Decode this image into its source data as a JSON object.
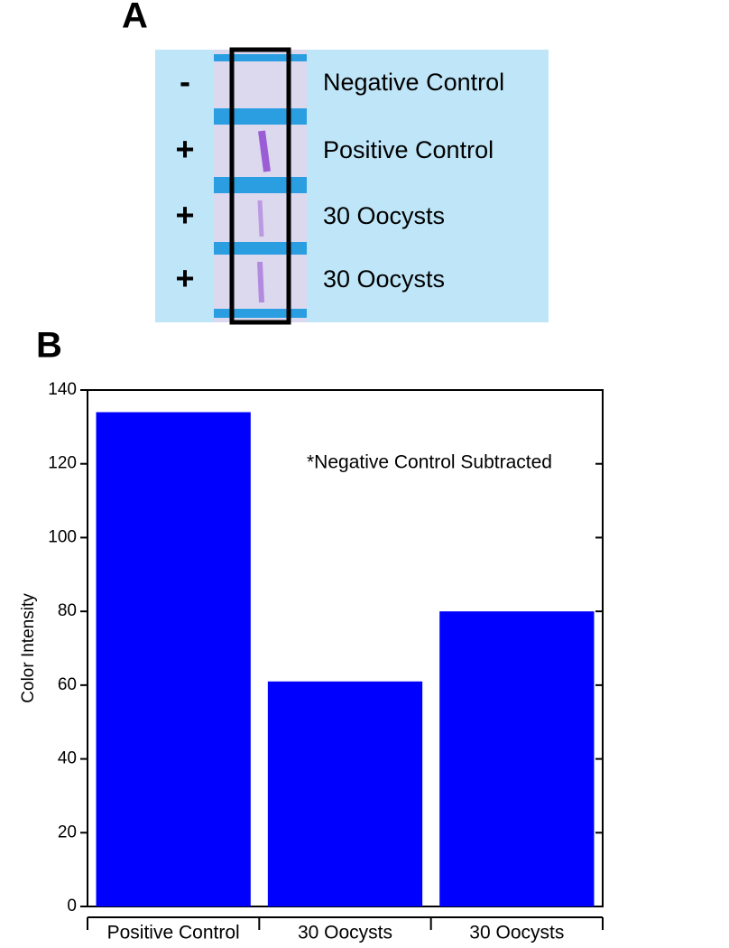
{
  "panel_a": {
    "label": "A",
    "rows": [
      {
        "sign": "-",
        "label": "Negative Control"
      },
      {
        "sign": "+",
        "label": "Positive Control"
      },
      {
        "sign": "+",
        "label": "30 Oocysts"
      },
      {
        "sign": "+",
        "label": "30 Oocysts"
      }
    ]
  },
  "chart_data": {
    "type": "bar",
    "panel_label": "B",
    "y_label": "Color Intensity",
    "annotation": "*Negative Control Subtracted",
    "categories": [
      "Positive Control",
      "30 Oocysts",
      "30 Oocysts"
    ],
    "values": [
      134,
      61,
      80
    ],
    "color": "#0000ff",
    "ylim": [
      0,
      140
    ],
    "yticks": [
      0,
      20,
      40,
      60,
      80,
      100,
      120,
      140
    ]
  }
}
